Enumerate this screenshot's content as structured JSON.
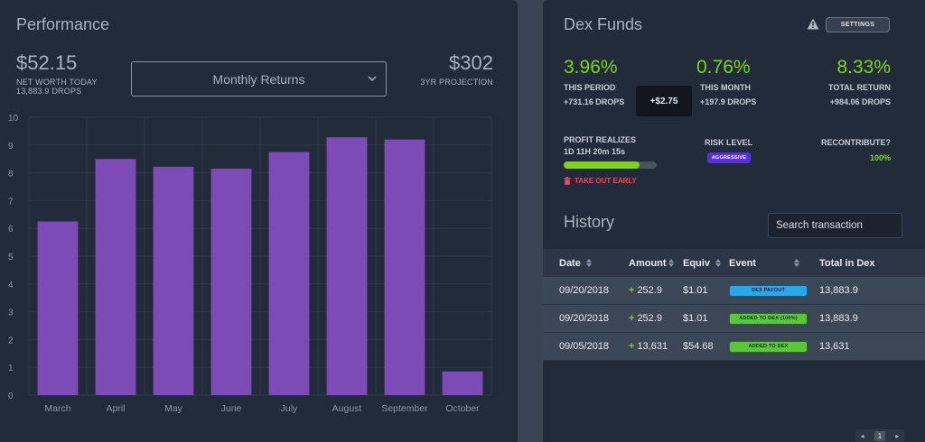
{
  "performance": {
    "title": "Performance",
    "net_worth": "$52.15",
    "net_worth_label": "NET WORTH TODAY",
    "drops": "13,883.9 DROPS",
    "select_value": "Monthly Returns",
    "projection": "$302",
    "projection_label": "3YR PROJECTION"
  },
  "chart_data": {
    "type": "bar",
    "categories": [
      "March",
      "April",
      "May",
      "June",
      "July",
      "August",
      "September",
      "October"
    ],
    "values": [
      6.25,
      8.5,
      8.22,
      8.15,
      8.75,
      9.28,
      9.2,
      0.85
    ],
    "title": "",
    "xlabel": "",
    "ylabel": "",
    "ylim": [
      0,
      10
    ],
    "yticks": [
      "0",
      "1",
      "2",
      "3",
      "4",
      "5",
      "6",
      "7",
      "8",
      "9",
      "10"
    ],
    "grid": true,
    "bar_color": "#7c4bb5"
  },
  "dex": {
    "title": "Dex Funds",
    "warning_icon": "warning-icon",
    "settings_label": "SETTINGS",
    "period_pct": "3.96%",
    "period_label": "THIS PERIOD",
    "period_drops": "+731.16 DROPS",
    "tooltip": "+$2.75",
    "month_pct": "0.76%",
    "month_label": "THIS MONTH",
    "month_drops": "+197.9 DROPS",
    "total_pct": "8.33%",
    "total_label": "TOTAL RETURN",
    "total_drops": "+984.06 DROPS",
    "profit_label": "PROFIT REALIZES",
    "profit_time": "1D 11H 20m 15s",
    "profit_progress": 0.82,
    "risk_label": "RISK LEVEL",
    "risk_value": "AGGRESSIVE",
    "recontribute_label": "RECONTRIBUTE?",
    "recontribute_value": "100%",
    "takeout_label": "TAKE OUT EARLY",
    "accent_green": "#7ed321"
  },
  "history": {
    "title": "History",
    "search_placeholder": "Search transaction",
    "columns": [
      "Date",
      "Amount",
      "Equiv",
      "Event",
      "Total in Dex"
    ],
    "rows": [
      {
        "date": "09/20/2018",
        "amount": "252.9",
        "equiv": "$1.01",
        "event": "DEX PAYOUT",
        "event_color": "blue",
        "total": "13,883.9"
      },
      {
        "date": "09/20/2018",
        "amount": "252.9",
        "equiv": "$1.01",
        "event": "ADDED TO DEX (100%)",
        "event_color": "green",
        "total": "13,883.9"
      },
      {
        "date": "09/05/2018",
        "amount": "13,631",
        "equiv": "$54.68",
        "event": "ADDED TO DEX",
        "event_color": "green",
        "total": "13,631"
      }
    ],
    "page": "1"
  }
}
